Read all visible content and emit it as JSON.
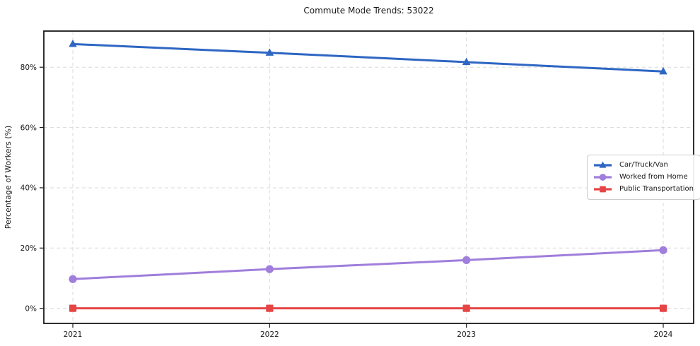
{
  "chart_data": {
    "type": "line",
    "title": "Commute Mode Trends: 53022",
    "xlabel": "",
    "ylabel": "Percentage of Workers (%)",
    "x_labels": [
      "2021",
      "2022",
      "2023",
      "2024"
    ],
    "yticks": [
      0,
      20,
      40,
      60,
      80
    ],
    "ytick_labels": [
      "0%",
      "20%",
      "40%",
      "60%",
      "80%"
    ],
    "ylim": [
      -5,
      92
    ],
    "grid": true,
    "grid_style": "dashed",
    "legend_position": "center-right",
    "series": [
      {
        "name": "Car/Truck/Van",
        "marker": "triangle",
        "color": "#2e66c3",
        "values": [
          87.7,
          84.8,
          81.7,
          78.6
        ]
      },
      {
        "name": "Worked from Home",
        "marker": "circle",
        "color": "#a07edb",
        "values": [
          9.7,
          13.0,
          16.0,
          19.3
        ]
      },
      {
        "name": "Public Transportation",
        "marker": "square",
        "color": "#e64545",
        "values": [
          0.0,
          0.0,
          0.0,
          0.0
        ]
      }
    ],
    "colors": {
      "grid": "#dadada",
      "spine": "#1a1a1a",
      "text": "#1a1a1a"
    }
  }
}
